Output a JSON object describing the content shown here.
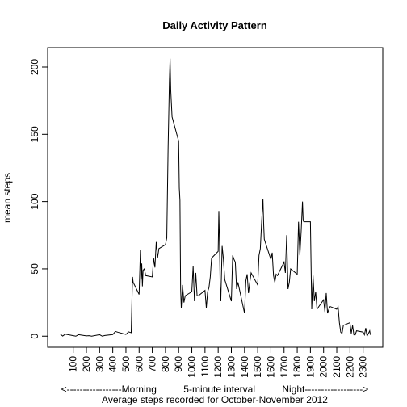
{
  "chart_data": {
    "type": "line",
    "title": "Daily Activity Pattern",
    "y_label": "mean steps",
    "x_label": "<-----------------Morning          5-minute interval          Night------------------>",
    "x_label_2": "Average steps recorded for October-November 2012",
    "color": "#000000",
    "x": [
      0,
      20,
      40,
      100,
      120,
      140,
      200,
      220,
      240,
      300,
      320,
      340,
      400,
      420,
      440,
      500,
      520,
      540,
      550,
      555,
      600,
      610,
      615,
      620,
      625,
      630,
      640,
      650,
      700,
      710,
      720,
      730,
      740,
      750,
      800,
      810,
      820,
      830,
      835,
      840,
      850,
      900,
      905,
      910,
      915,
      920,
      930,
      940,
      950,
      1000,
      1010,
      1020,
      1030,
      1040,
      1050,
      1100,
      1110,
      1120,
      1130,
      1140,
      1150,
      1200,
      1205,
      1210,
      1215,
      1220,
      1230,
      1240,
      1250,
      1300,
      1310,
      1320,
      1330,
      1340,
      1350,
      1400,
      1410,
      1420,
      1430,
      1440,
      1450,
      1500,
      1510,
      1520,
      1530,
      1540,
      1545,
      1550,
      1600,
      1610,
      1620,
      1630,
      1640,
      1650,
      1700,
      1710,
      1720,
      1730,
      1740,
      1750,
      1800,
      1810,
      1820,
      1830,
      1840,
      1845,
      1850,
      1900,
      1910,
      1920,
      1930,
      1940,
      1950,
      2000,
      2010,
      2020,
      2030,
      2040,
      2050,
      2100,
      2110,
      2120,
      2130,
      2140,
      2150,
      2200,
      2210,
      2220,
      2230,
      2240,
      2250,
      2300,
      2310,
      2320,
      2330,
      2340,
      2350,
      2355
    ],
    "y": [
      1.7,
      0.1,
      1.5,
      0.4,
      0,
      1.1,
      0.2,
      0.4,
      0,
      1.1,
      0,
      0.5,
      1.2,
      3.5,
      2.9,
      1.3,
      3.2,
      2.6,
      44,
      40,
      31,
      64,
      42,
      54,
      37,
      49,
      50,
      45,
      44,
      58,
      51,
      70,
      58,
      65,
      68,
      73,
      140,
      190,
      206.2,
      183,
      163,
      145,
      110,
      101,
      35,
      21,
      38,
      25,
      30,
      33,
      52,
      26,
      47,
      30,
      30,
      34,
      21,
      33,
      36,
      44,
      58,
      63,
      93,
      70,
      37,
      26,
      67,
      57,
      42,
      26,
      60,
      57,
      55,
      35,
      40,
      17,
      41,
      46,
      32,
      40,
      47,
      38,
      60,
      65,
      85,
      102,
      84,
      72,
      57,
      62,
      45,
      40,
      46,
      45,
      55,
      47,
      75,
      35,
      40,
      50,
      46,
      85,
      60,
      78,
      100,
      86,
      85,
      85,
      20,
      45,
      26,
      33,
      20,
      27,
      18,
      32,
      17,
      20,
      22,
      20,
      22,
      10,
      3,
      2,
      8,
      10,
      2,
      8,
      1,
      1,
      4,
      3,
      1,
      6,
      0,
      2,
      4,
      1
    ],
    "xlim": [
      -94.2,
      2449.2
    ],
    "ylim": [
      -8.25,
      214.4
    ],
    "xticks": [
      100,
      200,
      300,
      400,
      500,
      600,
      700,
      800,
      900,
      1000,
      1100,
      1200,
      1300,
      1400,
      1500,
      1600,
      1700,
      1800,
      1900,
      2000,
      2100,
      2200,
      2300
    ],
    "yticks": [
      0,
      50,
      100,
      150,
      200
    ]
  }
}
